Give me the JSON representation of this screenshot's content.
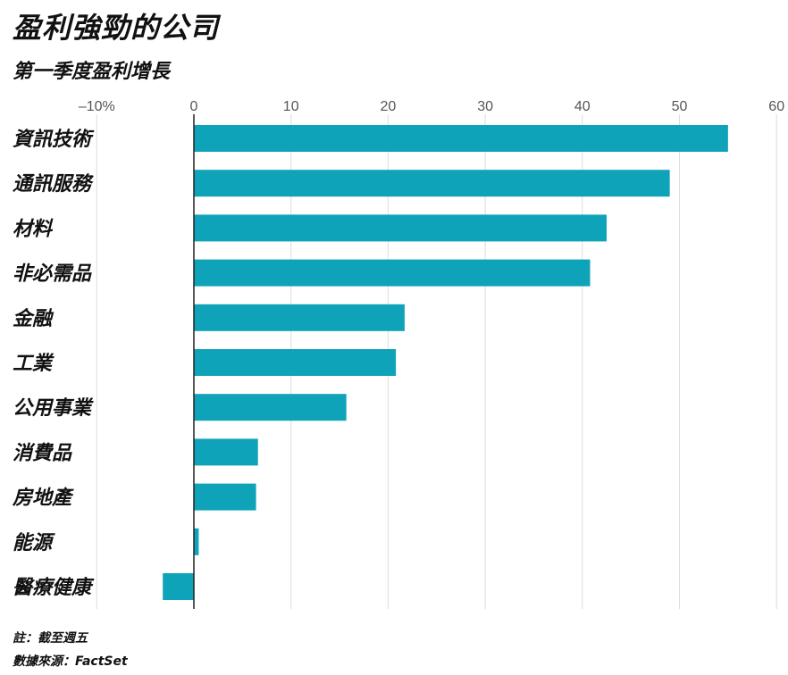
{
  "title": "盈利強勁的公司",
  "subtitle": "第一季度盈利增長",
  "footnote": "註：截至週五",
  "source": "數據來源：FactSet",
  "colors": {
    "bar": "#0ea3b8",
    "grid": "#dddddd",
    "axis": "#222222"
  },
  "chart_data": {
    "type": "bar",
    "orientation": "horizontal",
    "title": "盈利強勁的公司",
    "subtitle": "第一季度盈利增長",
    "categories": [
      "資訊技術",
      "通訊服務",
      "材料",
      "非必需品",
      "金融",
      "工業",
      "公用事業",
      "消費品",
      "房地產",
      "能源",
      "醫療健康"
    ],
    "values": [
      55.0,
      49.0,
      42.5,
      40.8,
      21.7,
      20.8,
      15.7,
      6.6,
      6.4,
      0.5,
      -3.2
    ],
    "xlim": [
      -10,
      60
    ],
    "xticks": [
      -10,
      0,
      10,
      20,
      30,
      40,
      50,
      60
    ],
    "xtick_labels": [
      "–10%",
      "0",
      "10",
      "20",
      "30",
      "40",
      "50",
      "60"
    ],
    "xlabel": "",
    "ylabel": "",
    "grid": "vertical",
    "axis_position": "top"
  }
}
